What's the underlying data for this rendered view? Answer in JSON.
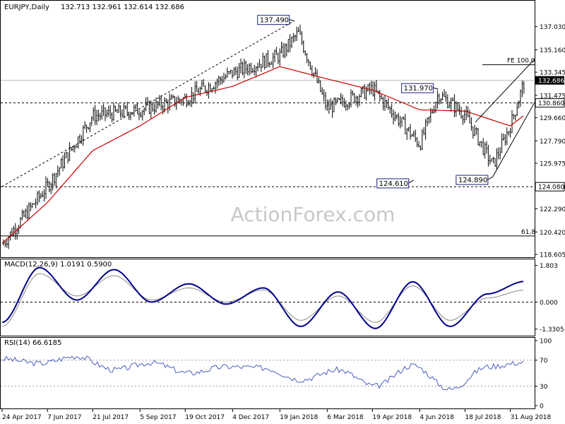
{
  "header": {
    "symbol": "EURJPY,Daily",
    "ohlc": "132.713 132.961 132.614 132.686"
  },
  "watermark": "ActionForex.com",
  "colors": {
    "price": "#000000",
    "ma": "#cc0000",
    "macd": "#00008b",
    "signal": "#8a8a8a",
    "rsi": "#4a5fc1",
    "trendline": "#000000"
  },
  "chart_data": [
    {
      "type": "candlestick",
      "title": "EURJPY,Daily",
      "ylim": [
        118.605,
        138.9
      ],
      "price_axis_ticks": [
        "137.030",
        "135.160",
        "133.345",
        "131.475",
        "129.660",
        "127.790",
        "125.975",
        "124.080",
        "122.290",
        "120.420",
        "118.605"
      ],
      "x_tick_labels": [
        "24 Apr 2017",
        "7 Jun 2017",
        "21 Jul 2017",
        "5 Sep 2017",
        "19 Oct 2017",
        "4 Dec 2017",
        "19 Jan 2018",
        "6 Mar 2018",
        "19 Apr 2018",
        "4 Jun 2018",
        "18 Jul 2018",
        "31 Aug 2018"
      ],
      "current_price": "132.686",
      "annotations": [
        {
          "label": "137.490",
          "value": 137.49,
          "date": "2 Feb 2018"
        },
        {
          "label": "131.970",
          "value": 131.97,
          "date": "22 Jun 2018"
        },
        {
          "label": "124.610",
          "value": 124.61,
          "date": "29 May 2018"
        },
        {
          "label": "124.890",
          "value": 124.89,
          "date": "14 Aug 2018"
        }
      ],
      "horizontal_levels": [
        {
          "label": "130.860",
          "value": 130.86,
          "style": "dashed"
        },
        {
          "label": "124.080",
          "value": 124.08,
          "style": "dashed"
        },
        {
          "label": "61.8",
          "value": 120.1,
          "style": "solid"
        },
        {
          "label": "FE 100.0",
          "value": 133.95,
          "style": "solid"
        }
      ],
      "series": [
        {
          "name": "Close",
          "x": [
            "24 Apr 2017",
            "7 Jun 2017",
            "21 Jul 2017",
            "5 Sep 2017",
            "19 Oct 2017",
            "4 Dec 2017",
            "19 Jan 2018",
            "6 Feb 2018",
            "6 Mar 2018",
            "19 Apr 2018",
            "4 Jun 2018",
            "22 Jun 2018",
            "18 Jul 2018",
            "14 Aug 2018",
            "31 Aug 2018",
            "14 Sep 2018"
          ],
          "values": [
            119.4,
            124.1,
            129.8,
            130.3,
            131.2,
            133.3,
            134.7,
            136.5,
            130.4,
            132.0,
            127.5,
            131.6,
            129.9,
            125.8,
            129.0,
            132.7
          ]
        },
        {
          "name": "MA",
          "x": [
            "24 Apr 2017",
            "7 Jun 2017",
            "21 Jul 2017",
            "5 Sep 2017",
            "19 Oct 2017",
            "4 Dec 2017",
            "19 Jan 2018",
            "6 Mar 2018",
            "19 Apr 2018",
            "4 Jun 2018",
            "18 Jul 2018",
            "31 Aug 2018",
            "14 Sep 2018"
          ],
          "values": [
            119.5,
            122.8,
            127.0,
            129.0,
            131.3,
            132.2,
            133.8,
            132.8,
            131.9,
            130.3,
            130.2,
            129.0,
            129.9
          ]
        }
      ]
    },
    {
      "type": "line",
      "title": "MACD(12,26,9) 1.0191 0.5900",
      "ylim": [
        -1.55,
        2.0
      ],
      "axis_ticks": [
        "1.803",
        "0.000",
        "-1.3305"
      ],
      "series": [
        {
          "name": "MACD",
          "values": [
            -1.0,
            1.7,
            0.1,
            1.6,
            0.0,
            0.9,
            -0.1,
            0.7,
            -1.2,
            0.5,
            -1.3,
            1.0,
            -1.2,
            0.4,
            1.02
          ]
        },
        {
          "name": "Signal",
          "values": [
            -1.2,
            1.4,
            0.3,
            1.3,
            0.1,
            0.7,
            0.0,
            0.6,
            -0.9,
            0.3,
            -1.0,
            0.8,
            -0.9,
            0.2,
            0.59
          ]
        }
      ]
    },
    {
      "type": "line",
      "title": "RSI(14) 66.6185",
      "ylim": [
        0,
        100
      ],
      "axis_ticks": [
        "100",
        "70",
        "30",
        "0"
      ],
      "levels": [
        70,
        30
      ],
      "series": [
        {
          "name": "RSI",
          "values": [
            72,
            65,
            76,
            55,
            66,
            50,
            60,
            58,
            40,
            55,
            30,
            62,
            25,
            60,
            66.6
          ]
        }
      ]
    }
  ]
}
